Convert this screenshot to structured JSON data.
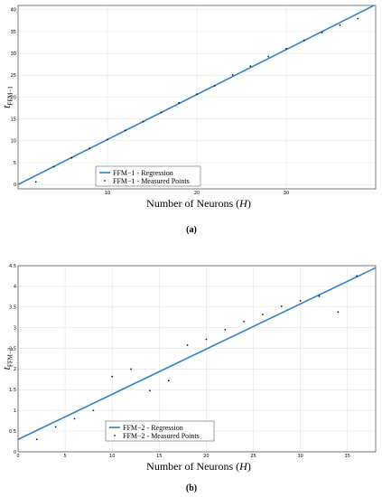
{
  "chart_data": [
    {
      "type": "scatter",
      "panel_label": "(a)",
      "xlabel": "Number of Neurons (H)",
      "ylabel": "t_FFM−1",
      "ylabel_base": "t",
      "ylabel_sub": "FFM−1",
      "xlim": [
        0,
        40
      ],
      "ylim": [
        -1,
        41
      ],
      "x_ticks": [
        10,
        20,
        30
      ],
      "x_tick_labels": [
        "10",
        "20",
        "30"
      ],
      "y_ticks": [
        0,
        5,
        10,
        15,
        20,
        25,
        30,
        35,
        40
      ],
      "y_tick_labels": [
        "0",
        "5",
        "10",
        "15",
        "20",
        "25",
        "30",
        "35",
        "40"
      ],
      "grid": true,
      "legend_position": "bottom-center",
      "series": [
        {
          "name": "FFM−1 - Regression",
          "kind": "line",
          "color": "#2f7fc8",
          "x": [
            0,
            40
          ],
          "y": [
            0,
            41.2
          ]
        },
        {
          "name": "FFM−1 - Measured Points",
          "kind": "points",
          "color": "#111111",
          "x": [
            2,
            4,
            6,
            8,
            10,
            12,
            14,
            16,
            18,
            20,
            22,
            24,
            26,
            28,
            30,
            32,
            34,
            36,
            38
          ],
          "y": [
            0.6,
            4.1,
            6.1,
            8.3,
            10.3,
            12.4,
            14.4,
            16.5,
            18.7,
            20.7,
            22.6,
            25.1,
            27.1,
            29.3,
            31.1,
            33.0,
            34.8,
            36.5,
            38.0
          ]
        }
      ]
    },
    {
      "type": "scatter",
      "panel_label": "(b)",
      "xlabel": "Number of Neurons (H)",
      "ylabel": "t_FFM−2",
      "ylabel_base": "t",
      "ylabel_sub": "FFM−2",
      "xlim": [
        0,
        38
      ],
      "ylim": [
        0,
        4.5
      ],
      "x_ticks": [
        0,
        5,
        10,
        15,
        20,
        25,
        30,
        35
      ],
      "x_tick_labels": [
        "0",
        "5",
        "10",
        "15",
        "20",
        "25",
        "30",
        "35"
      ],
      "y_ticks": [
        0,
        0.5,
        1,
        1.5,
        2,
        2.5,
        3,
        3.5,
        4,
        4.5
      ],
      "y_tick_labels": [
        "0",
        "0.5",
        "1",
        "1.5",
        "2",
        "2.5",
        "3",
        "3.5",
        "4",
        "4.5"
      ],
      "grid": true,
      "legend_position": "bottom-center",
      "series": [
        {
          "name": "FFM−2 - Regression",
          "kind": "line",
          "color": "#2f7fc8",
          "x": [
            0,
            38
          ],
          "y": [
            0.3,
            4.45
          ]
        },
        {
          "name": "FFM−2 - Measured Points",
          "kind": "points",
          "color": "#111111",
          "x": [
            2,
            4,
            6,
            8,
            10,
            12,
            14,
            16,
            18,
            20,
            22,
            24,
            26,
            28,
            30,
            32,
            34,
            36
          ],
          "y": [
            0.3,
            0.6,
            0.8,
            1.0,
            1.82,
            2.0,
            1.48,
            1.72,
            2.58,
            2.72,
            2.95,
            3.15,
            3.32,
            3.52,
            3.65,
            3.76,
            3.38,
            4.25
          ]
        }
      ]
    }
  ]
}
